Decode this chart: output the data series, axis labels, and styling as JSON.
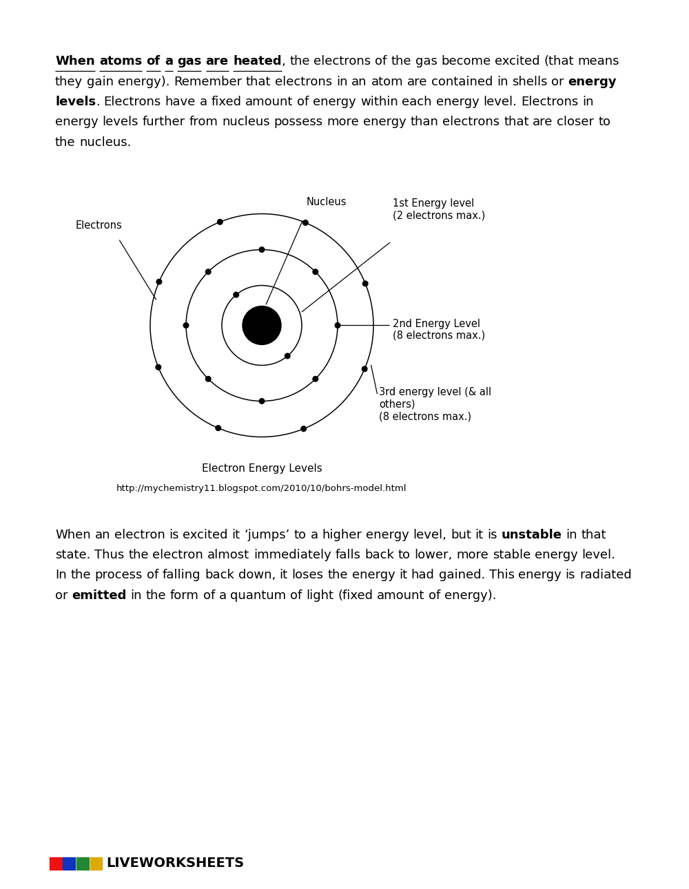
{
  "bg_color": "#ffffff",
  "text_color": "#000000",
  "diagram_caption": "Electron Energy Levels",
  "diagram_url": "http://mychemistry11.blogspot.com/2010/10/bohrs-model.html",
  "nucleus_label": "Nucleus",
  "electrons_label": "Electrons",
  "energy1_label": "1st Energy level\n(2 electrons max.)",
  "energy2_label": "2nd Energy Level\n(8 electrons max.)",
  "energy3_label": "3rd energy level (& all\nothers)\n(8 electrons max.)",
  "liveworksheets_text": "LIVEWORKSHEETS",
  "logo_colors": [
    "#EE1111",
    "#1133BB",
    "#228833",
    "#DDAA00"
  ]
}
